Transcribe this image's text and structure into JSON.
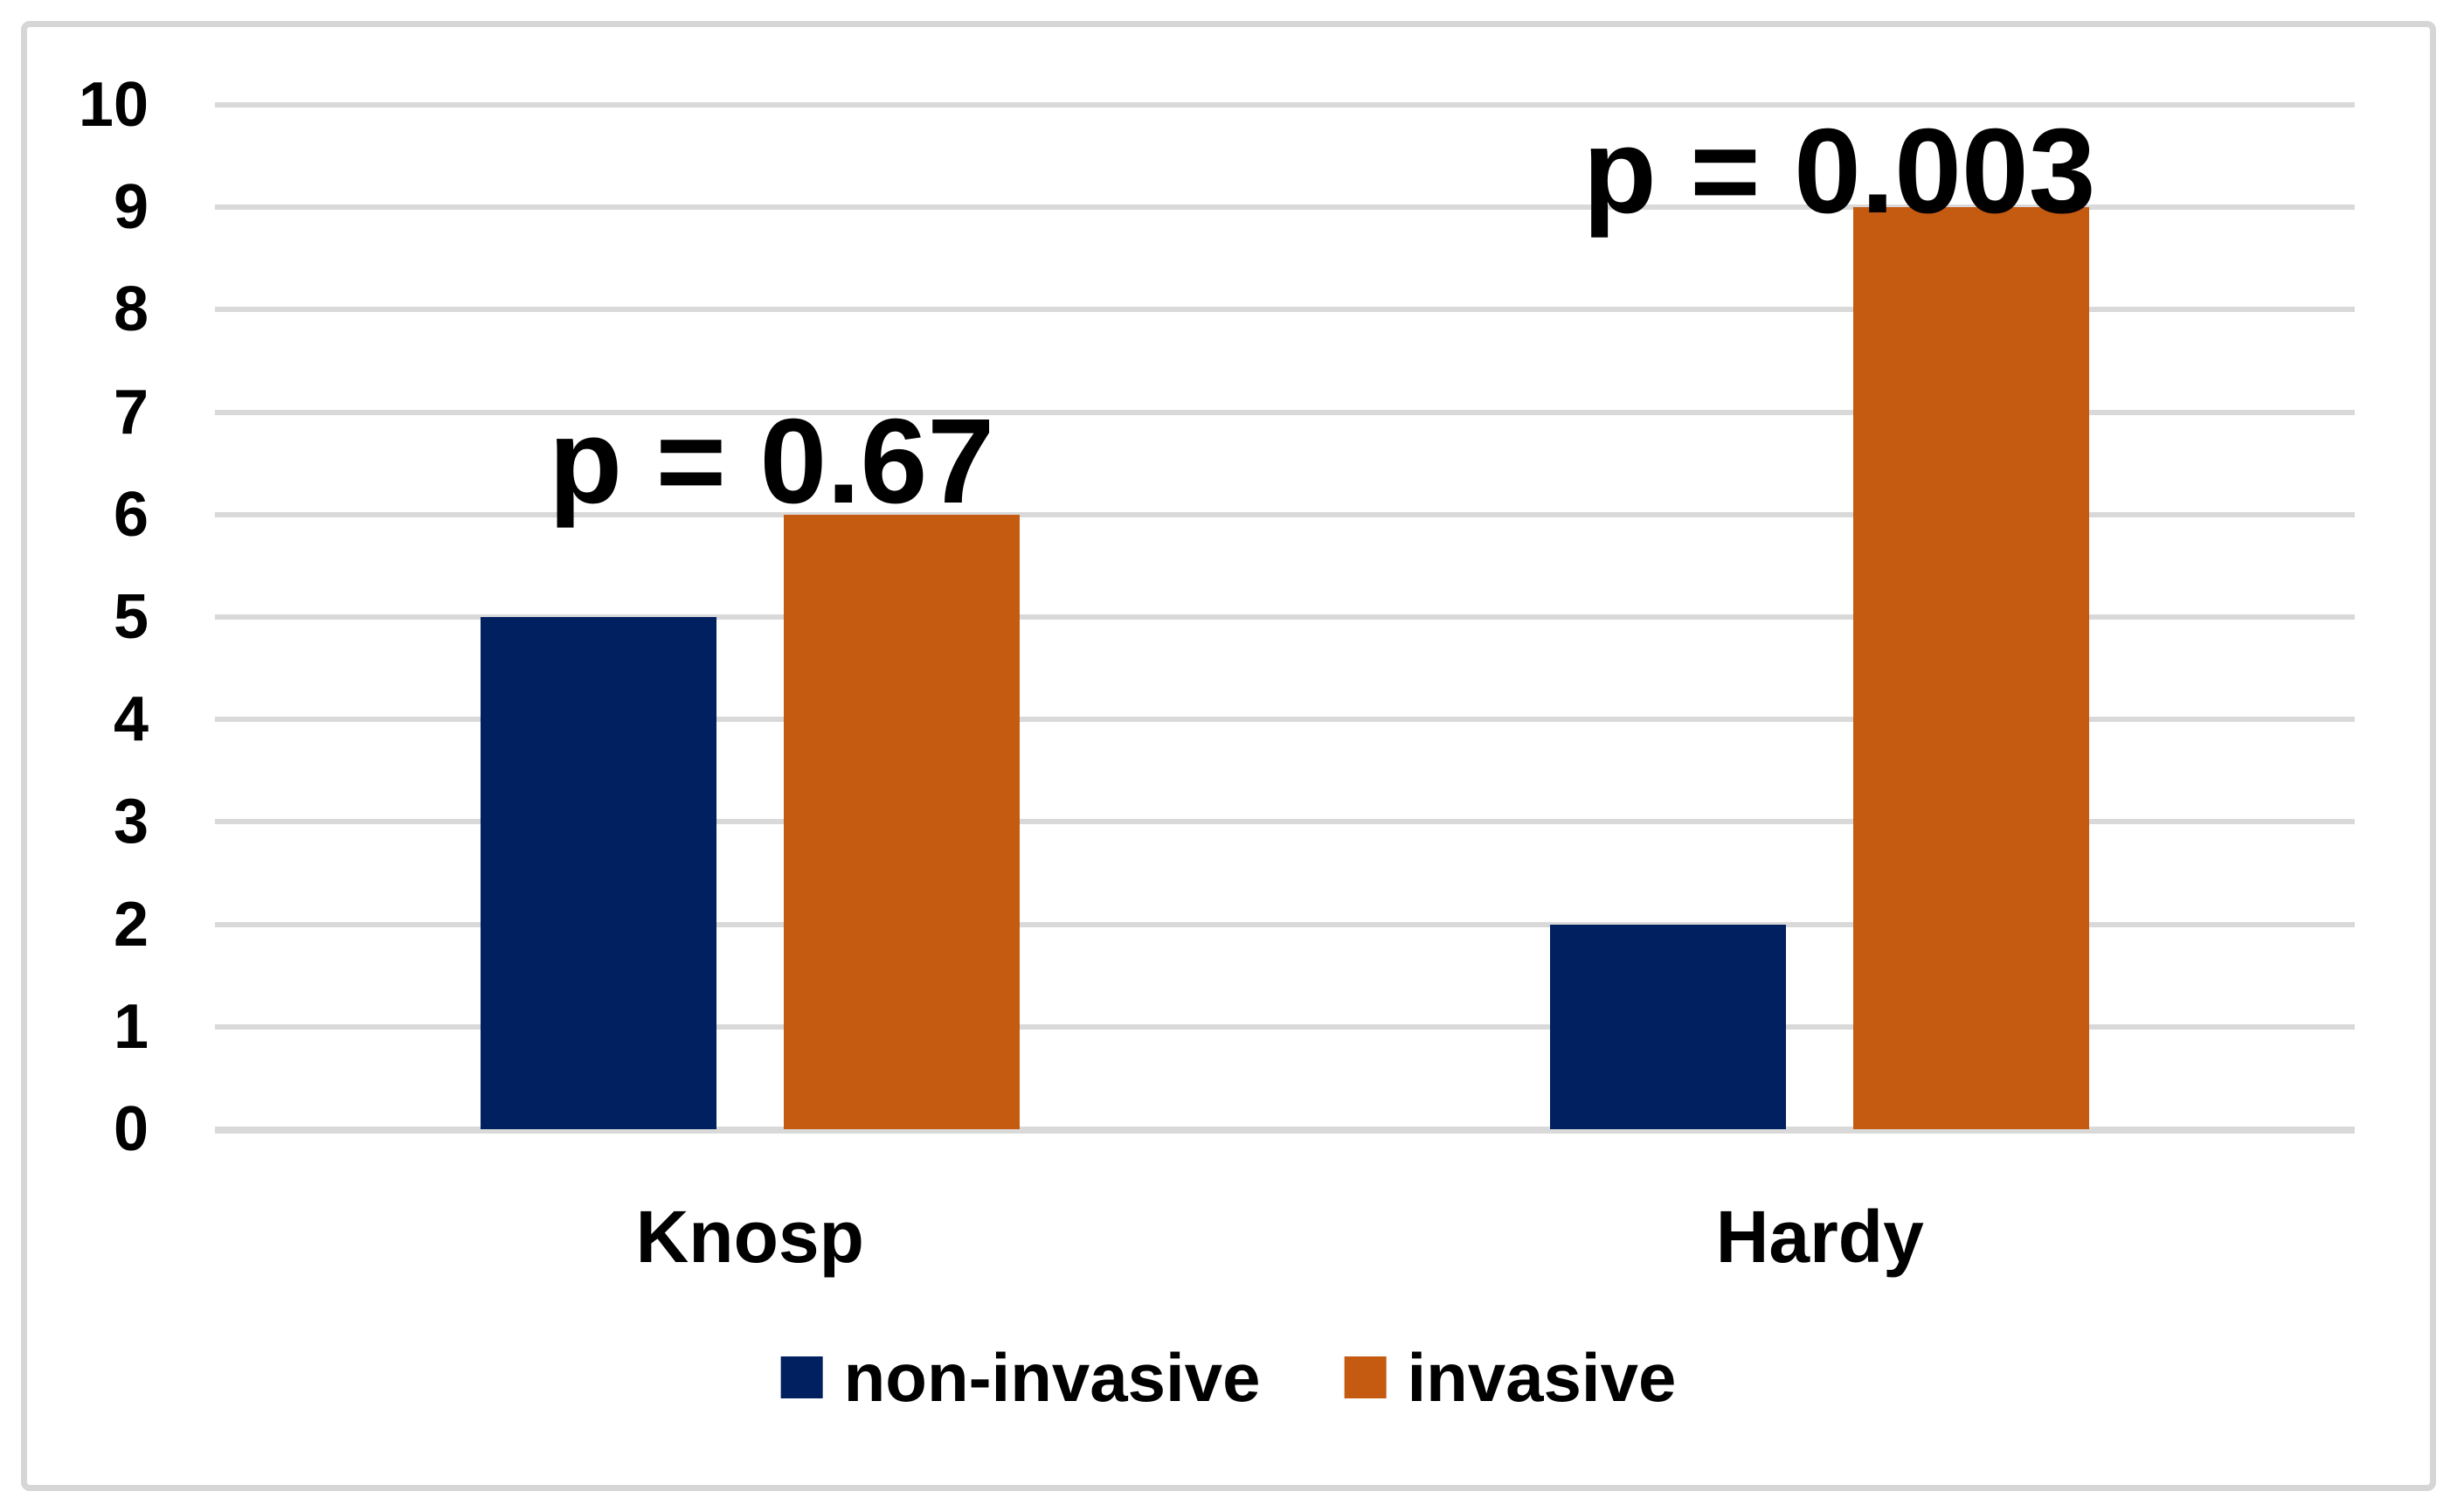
{
  "chart_data": {
    "type": "bar",
    "title": "",
    "xlabel": "",
    "ylabel": "",
    "categories": [
      "Knosp",
      "Hardy"
    ],
    "series": [
      {
        "name": "non-invasive",
        "color": "#002060",
        "values": [
          5,
          2
        ]
      },
      {
        "name": "invasive",
        "color": "#C55A11",
        "values": [
          6,
          9
        ]
      }
    ],
    "annotations": [
      {
        "text": "p = 0.67",
        "category": "Knosp"
      },
      {
        "text": "p = 0.003",
        "category": "Hardy"
      }
    ],
    "ylim": [
      0,
      10
    ],
    "ytick_step": 1,
    "yticks": [
      0,
      1,
      2,
      3,
      4,
      5,
      6,
      7,
      8,
      9,
      10
    ],
    "grid": true,
    "gridline_color": "#D9D9D9",
    "frame_border_color": "#D6D6D6",
    "legend_position": "bottom"
  }
}
